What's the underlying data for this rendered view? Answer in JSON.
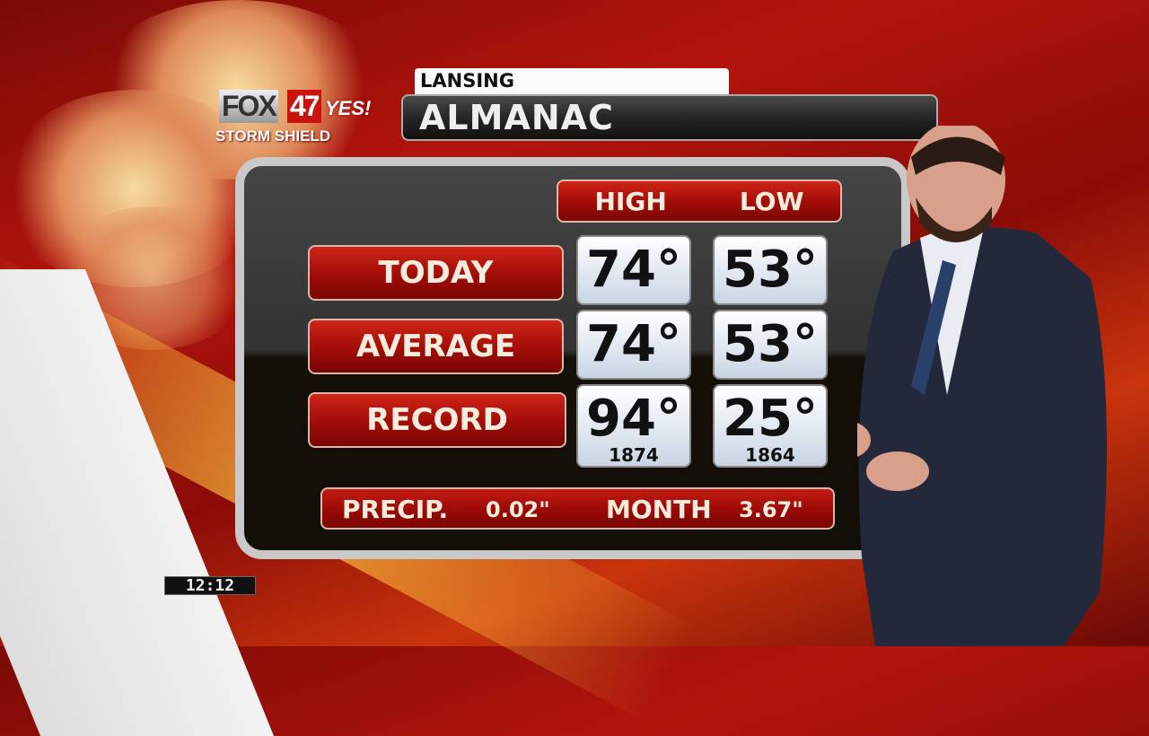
{
  "logo": {
    "brand": "FOX",
    "channel": "47",
    "tag": "YES!",
    "sub": "STORM SHIELD"
  },
  "header": {
    "location": "LANSING",
    "title": "ALMANAC"
  },
  "table": {
    "columns": [
      "HIGH",
      "LOW"
    ],
    "rows": [
      {
        "label": "TODAY",
        "high": "74°",
        "low": "53°"
      },
      {
        "label": "AVERAGE",
        "high": "74°",
        "low": "53°"
      },
      {
        "label": "RECORD",
        "high": "94°",
        "low": "25°",
        "high_year": "1874",
        "low_year": "1864"
      }
    ]
  },
  "precip": {
    "label": "PRECIP.",
    "value": "0.02\"",
    "month_label": "MONTH",
    "month_value": "3.67\""
  },
  "clock": "12:12",
  "colors": {
    "accent_red": "#a00c08",
    "panel": "#141008",
    "value_box": "#e4ecf6"
  }
}
